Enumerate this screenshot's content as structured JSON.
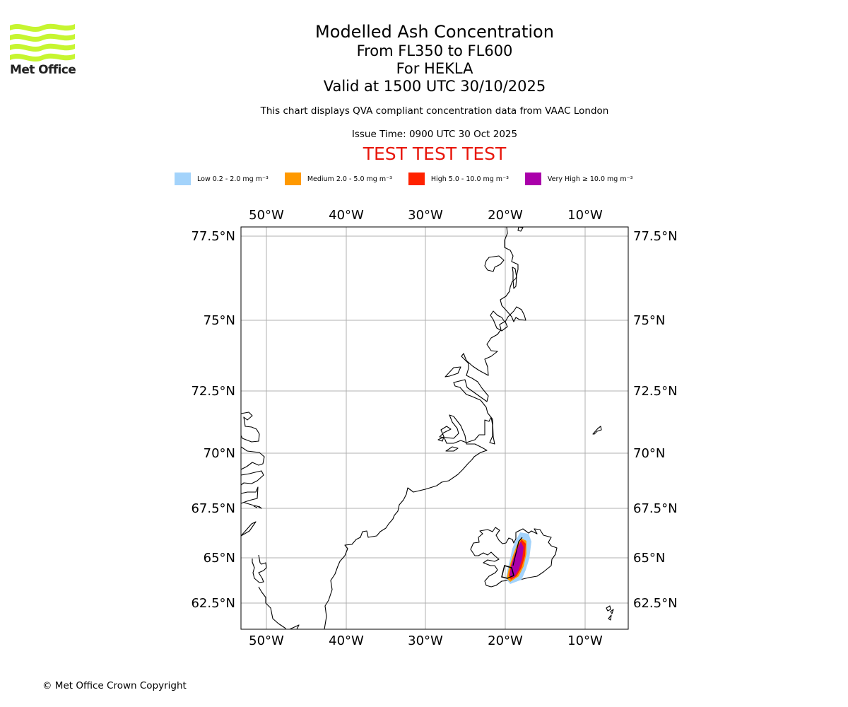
{
  "header": {
    "title": "Modelled Ash Concentration",
    "levels": "From FL350 to FL600",
    "volcano": "For HEKLA",
    "valid": "Valid at 1500 UTC 30/10/2025",
    "note": "This chart displays QVA compliant concentration data from VAAC London",
    "issue": "Issue Time: 0900 UTC 30 Oct 2025",
    "test_banner": "TEST TEST TEST"
  },
  "logo": {
    "text": "Met Office"
  },
  "legend": [
    {
      "label": "Low 0.2 - 2.0 mg m⁻³",
      "color": "#a3d3fb"
    },
    {
      "label": "Medium 2.0 - 5.0 mg m⁻³",
      "color": "#ff9900"
    },
    {
      "label": "High 5.0 - 10.0 mg m⁻³",
      "color": "#ff2200"
    },
    {
      "label": "Very High ≥ 10.0 mg m⁻³",
      "color": "#aa00aa"
    }
  ],
  "map": {
    "lon_ticks": [
      "50°W",
      "40°W",
      "30°W",
      "20°W",
      "10°W"
    ],
    "lat_ticks": [
      "77.5°N",
      "75°N",
      "72.5°N",
      "70°N",
      "67.5°N",
      "65°N",
      "62.5°N"
    ]
  },
  "footer": {
    "copyright": "© Met Office Crown Copyright"
  }
}
